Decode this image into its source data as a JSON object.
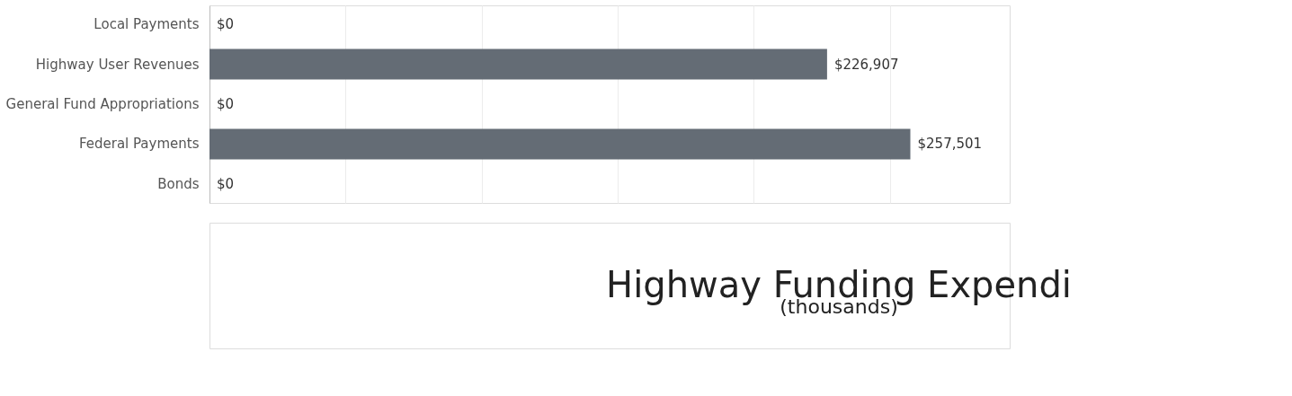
{
  "chart_data": {
    "type": "bar",
    "orientation": "horizontal",
    "categories": [
      "Local Payments",
      "Highway User Revenues",
      "General Fund Appropriations",
      "Federal Payments",
      "Bonds"
    ],
    "values": [
      0,
      226907,
      0,
      257501,
      0
    ],
    "value_labels": [
      "$0",
      "$226,907",
      "$0",
      "$257,501",
      "$0"
    ],
    "color": "#646c75",
    "xlim": [
      0,
      294000
    ],
    "xticks": [
      {
        "value": 0,
        "label": null
      },
      {
        "value": 50000,
        "label": null
      },
      {
        "value": 100000,
        "label": null
      },
      {
        "value": 150000,
        "label": null
      },
      {
        "value": 200000,
        "label": null
      },
      {
        "value": 250000,
        "label": null
      }
    ],
    "tick_labels": "y",
    "grid": "x",
    "annotations": [
      "Highway Funding Expendi",
      "(thousands)"
    ]
  }
}
